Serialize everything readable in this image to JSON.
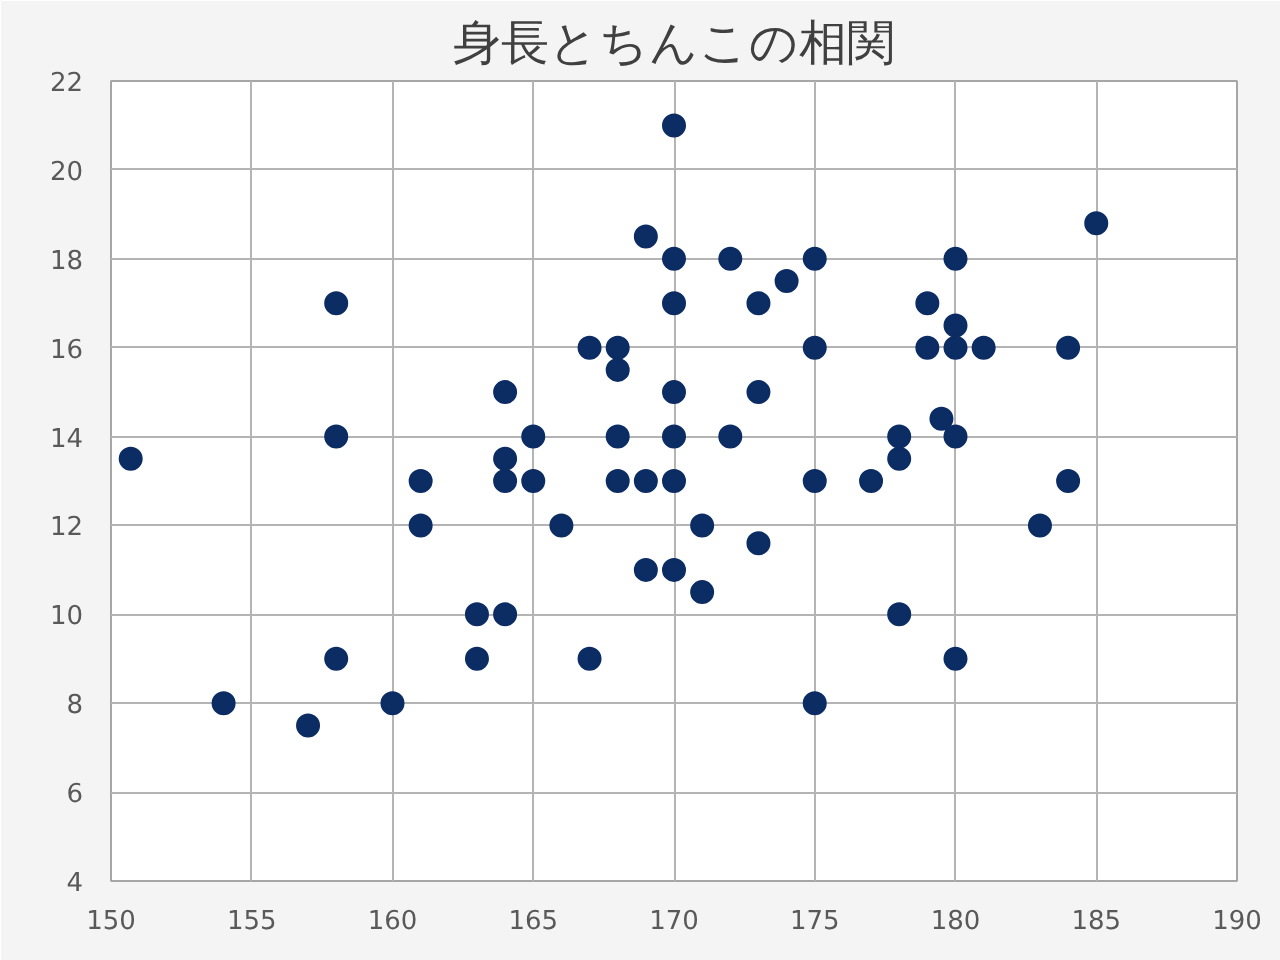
{
  "chart_data": {
    "type": "scatter",
    "title": "身長とちんこの相関",
    "x": [
      150.7,
      154,
      157,
      158,
      158,
      158,
      160,
      161,
      161,
      163,
      163,
      164,
      164,
      164,
      164,
      165,
      165,
      166,
      167,
      167,
      168,
      168,
      168,
      168,
      169,
      169,
      169,
      170,
      170,
      170,
      170,
      170,
      170,
      170,
      171,
      171,
      172,
      172,
      173,
      173,
      173,
      174,
      175,
      175,
      175,
      175,
      177,
      178,
      178,
      178,
      179,
      179,
      179.5,
      180,
      180,
      180,
      180,
      180,
      181,
      183,
      184,
      184,
      185
    ],
    "values": [
      13.5,
      8,
      7.5,
      17,
      14,
      9,
      8,
      13,
      12,
      10,
      9,
      15,
      13.5,
      13,
      10,
      14,
      13,
      12,
      9,
      16,
      16,
      15.5,
      14,
      13,
      18.5,
      13,
      11,
      21,
      18,
      17,
      15,
      14,
      13,
      11,
      12,
      10.5,
      18,
      14,
      17,
      15,
      11.6,
      17.5,
      18,
      16,
      13,
      8,
      13,
      14,
      13.5,
      10,
      17,
      16,
      14.4,
      18,
      16.5,
      16,
      14,
      9,
      16,
      12,
      13,
      16,
      18.8
    ],
    "color": "#0c2c64",
    "marker": "circle",
    "xlim": [
      150,
      190
    ],
    "ylim": [
      4,
      22
    ],
    "xticks": [
      150,
      155,
      160,
      165,
      170,
      175,
      180,
      185,
      190
    ],
    "yticks": [
      4,
      6,
      8,
      10,
      12,
      14,
      16,
      18,
      20,
      22
    ],
    "grid": true
  }
}
